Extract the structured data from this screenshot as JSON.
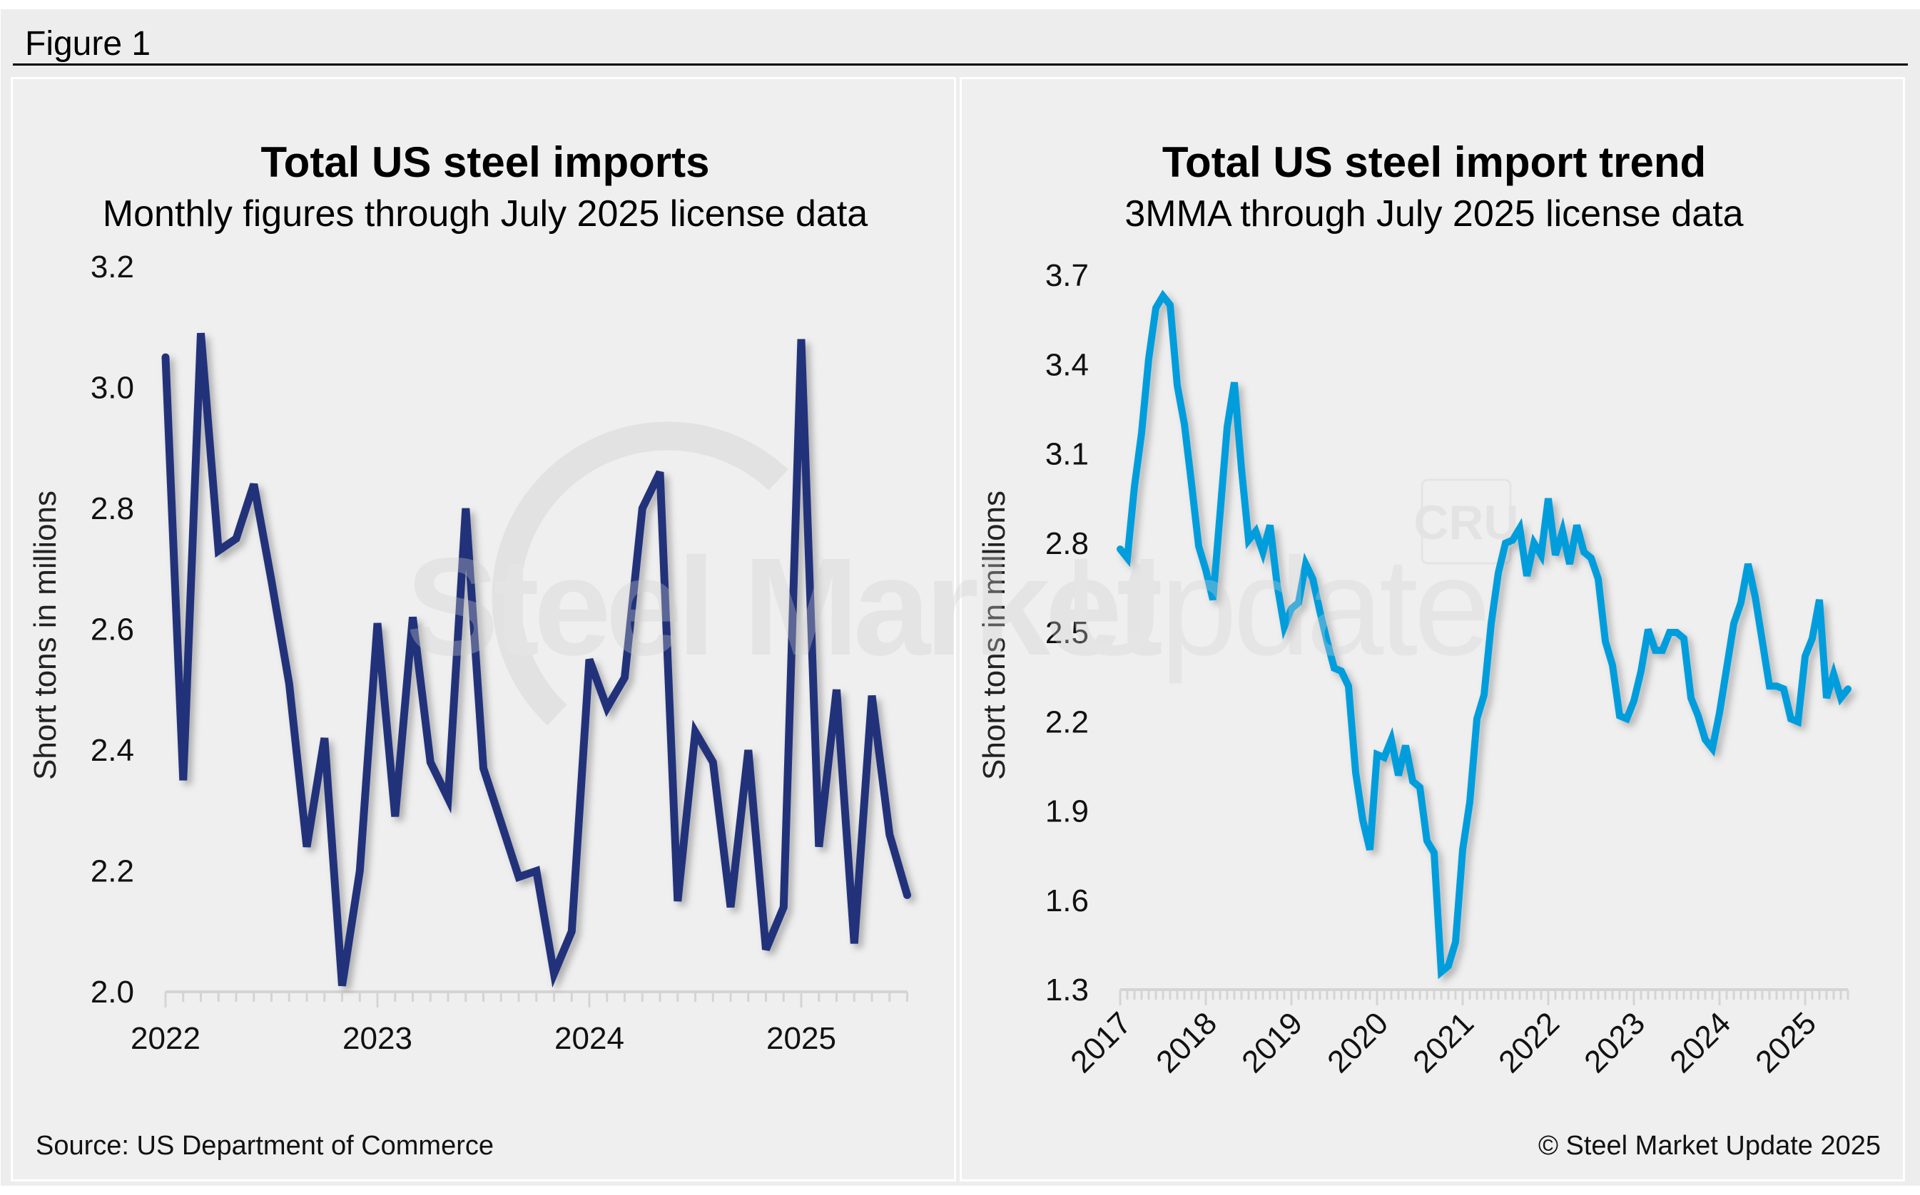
{
  "figure": {
    "label": "Figure 1",
    "source": "Source: US Department of Commerce",
    "copyright": "© Steel Market Update 2025",
    "watermark_bold": "Steel Market",
    "watermark_light": "Update",
    "watermark_logo": "CRU"
  },
  "colors": {
    "left_line": "#21337a",
    "right_line": "#009ddc",
    "axis": "#d4d4d4",
    "background": "#ededed"
  },
  "chart_data": [
    {
      "type": "line",
      "title": "Total US steel imports",
      "subtitle": "Monthly figures through July 2025 license data",
      "xlabel": "",
      "ylabel": "Short tons in millions",
      "ylim": [
        2.0,
        3.2
      ],
      "yticks": [
        "3.2",
        "3.0",
        "2.8",
        "2.6",
        "2.4",
        "2.2",
        "2.0"
      ],
      "ytick_values": [
        3.2,
        3.0,
        2.8,
        2.6,
        2.4,
        2.2,
        2.0
      ],
      "xtick_labels": [
        "2022",
        "2023",
        "2024",
        "2025"
      ],
      "x_start": "2022-01",
      "x_end": "2025-07",
      "frequency": "monthly",
      "grid": false,
      "legend": "none",
      "series": [
        {
          "name": "Total US steel imports",
          "values": [
            3.05,
            2.35,
            3.09,
            2.73,
            2.75,
            2.84,
            2.68,
            2.51,
            2.24,
            2.42,
            2.01,
            2.2,
            2.61,
            2.29,
            2.62,
            2.38,
            2.32,
            2.8,
            2.37,
            2.28,
            2.19,
            2.2,
            2.03,
            2.1,
            2.55,
            2.47,
            2.52,
            2.8,
            2.86,
            2.15,
            2.43,
            2.38,
            2.14,
            2.4,
            2.07,
            2.14,
            3.08,
            2.24,
            2.5,
            2.08,
            2.49,
            2.26,
            2.16
          ]
        }
      ]
    },
    {
      "type": "line",
      "title": "Total US steel import trend",
      "subtitle": "3MMA through July 2025 license data",
      "xlabel": "",
      "ylabel": "Short tons in millions",
      "ylim": [
        1.3,
        3.7
      ],
      "yticks": [
        "3.7",
        "3.4",
        "3.1",
        "2.8",
        "2.5",
        "2.2",
        "1.9",
        "1.6",
        "1.3"
      ],
      "ytick_values": [
        3.7,
        3.4,
        3.1,
        2.8,
        2.5,
        2.2,
        1.9,
        1.6,
        1.3
      ],
      "xtick_labels": [
        "2017",
        "2018",
        "2019",
        "2020",
        "2021",
        "2022",
        "2023",
        "2024",
        "2025"
      ],
      "x_start": "2017-01",
      "x_end": "2025-07",
      "frequency": "monthly",
      "grid": false,
      "legend": "none",
      "series": [
        {
          "name": "3MMA",
          "values": [
            2.78,
            2.75,
            2.99,
            3.17,
            3.42,
            3.59,
            3.63,
            3.6,
            3.33,
            3.2,
            3.0,
            2.79,
            2.71,
            2.61,
            2.9,
            3.19,
            3.34,
            3.05,
            2.81,
            2.84,
            2.77,
            2.86,
            2.66,
            2.52,
            2.58,
            2.6,
            2.73,
            2.68,
            2.57,
            2.47,
            2.38,
            2.37,
            2.32,
            2.03,
            1.87,
            1.77,
            2.09,
            2.08,
            2.14,
            2.02,
            2.12,
            2.0,
            1.98,
            1.8,
            1.76,
            1.36,
            1.38,
            1.46,
            1.77,
            1.93,
            2.21,
            2.29,
            2.53,
            2.7,
            2.8,
            2.81,
            2.85,
            2.69,
            2.8,
            2.76,
            2.95,
            2.76,
            2.84,
            2.73,
            2.86,
            2.77,
            2.75,
            2.68,
            2.47,
            2.39,
            2.22,
            2.21,
            2.27,
            2.37,
            2.51,
            2.44,
            2.44,
            2.5,
            2.5,
            2.48,
            2.28,
            2.22,
            2.14,
            2.11,
            2.23,
            2.38,
            2.53,
            2.6,
            2.73,
            2.62,
            2.47,
            2.32,
            2.32,
            2.31,
            2.21,
            2.2,
            2.42,
            2.48,
            2.61,
            2.28,
            2.36,
            2.28,
            2.31
          ]
        }
      ]
    }
  ]
}
